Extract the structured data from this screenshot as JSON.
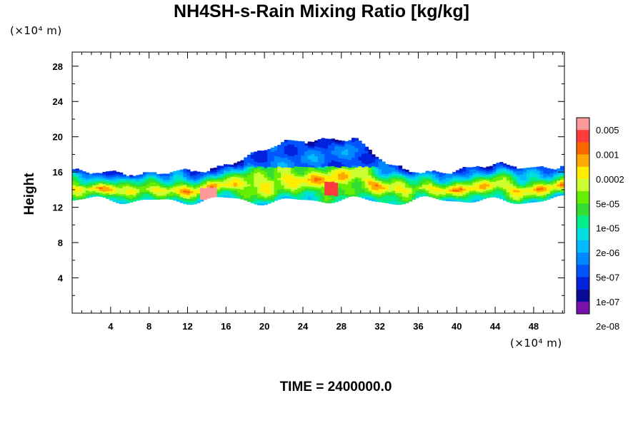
{
  "chart_data": {
    "type": "heatmap",
    "title": "NH4SH-s-Rain Mixing Ratio [kg/kg]",
    "ylabel": "Height",
    "xlabel": "",
    "x_unit": "(×10⁴ m)",
    "y_unit": "(×10⁴ m)",
    "time_label": "TIME = 2400000.0",
    "xlim": [
      0,
      51.2
    ],
    "ylim": [
      0,
      29.6
    ],
    "xticks": [
      4,
      8,
      12,
      16,
      20,
      24,
      28,
      32,
      36,
      40,
      44,
      48
    ],
    "yticks": [
      4,
      8,
      12,
      16,
      20,
      24,
      28
    ],
    "colorbar": {
      "labels": [
        "0.005",
        "0.001",
        "0.0002",
        "5e-05",
        "1e-05",
        "2e-06",
        "5e-07",
        "1e-07",
        "2e-08"
      ],
      "colors": [
        "#ff9a9a",
        "#ff3b3b",
        "#ff6600",
        "#ffaa00",
        "#ffee00",
        "#ccff33",
        "#66ee00",
        "#33dd33",
        "#00ee88",
        "#00dddd",
        "#00bbff",
        "#0088ff",
        "#0055ff",
        "#0022dd",
        "#0a0a99",
        "#7711aa"
      ]
    },
    "band": {
      "description_levels": "mixing ratio present mostly between heights 12.5 and 17 (x10^4 m), higher tops near x 20-30",
      "cloud_base": 12.8,
      "cloud_top": [
        16.2,
        16.0,
        15.4,
        16.0,
        16.4,
        17.6,
        19.2,
        19.8,
        19.6,
        16.4,
        16.0,
        16.2,
        16.6,
        16.4,
        16.8
      ]
    }
  }
}
